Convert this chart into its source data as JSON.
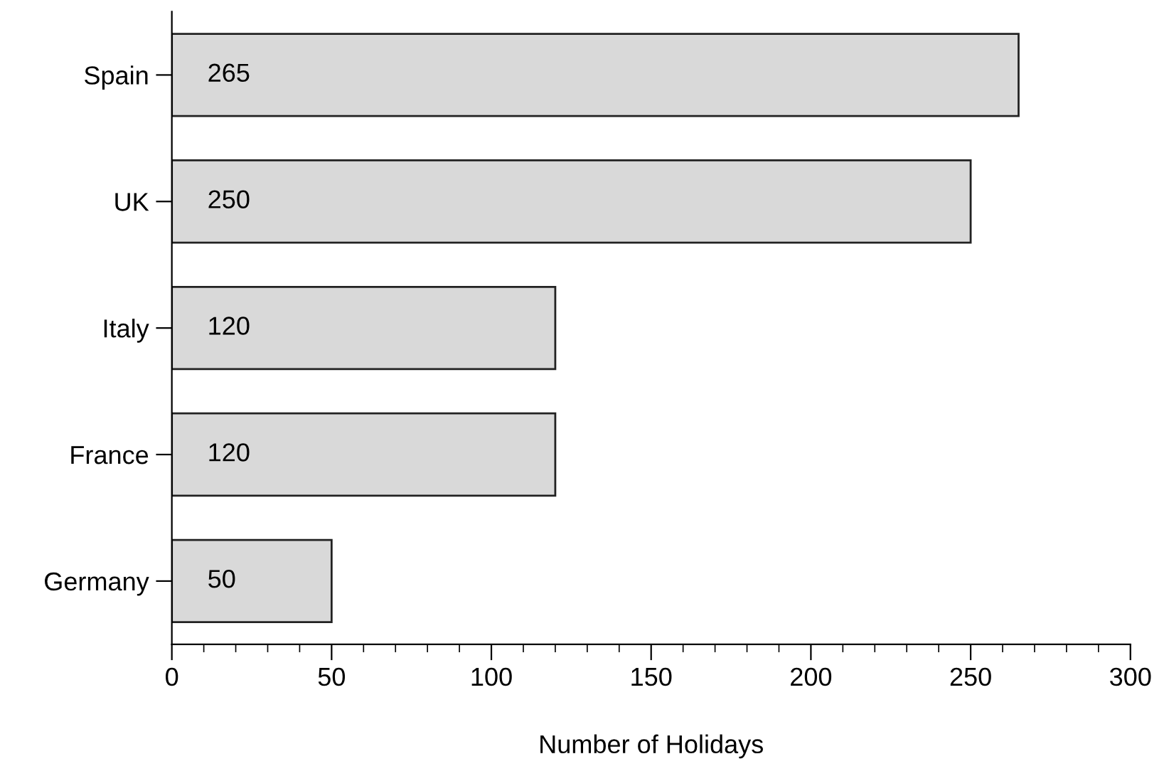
{
  "chart_data": {
    "type": "bar",
    "orientation": "horizontal",
    "categories": [
      "Spain",
      "UK",
      "Italy",
      "France",
      "Germany"
    ],
    "values": [
      265,
      250,
      120,
      120,
      50
    ],
    "color": "#d9d9d9",
    "xlabel": "Number of Holidays",
    "xlim": [
      0,
      300
    ],
    "xticks": [
      0,
      50,
      100,
      150,
      200,
      250,
      300
    ],
    "data_labels": true,
    "grid": false,
    "legend": false
  }
}
